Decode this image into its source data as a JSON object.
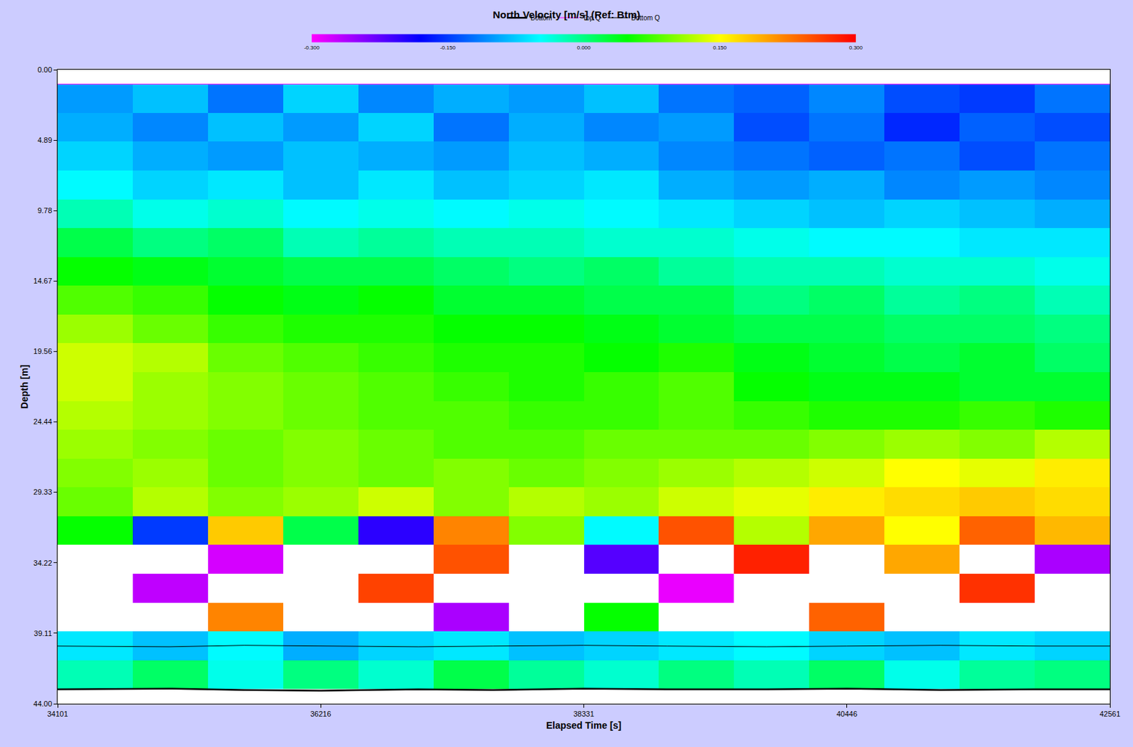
{
  "chart_data": {
    "type": "heatmap",
    "title": "North Velocity [m/s] (Ref: Btm)",
    "x_label": "Elapsed Time [s]",
    "y_label": "Depth [m]",
    "xlim": [
      34101,
      42561
    ],
    "xticks": [
      34101,
      36216,
      38331,
      40446,
      42561
    ],
    "ylim": [
      0,
      44
    ],
    "yticks": [
      {
        "value": 0,
        "label": "0.00"
      },
      4.89,
      9.78,
      14.67,
      19.56,
      24.44,
      29.33,
      34.22,
      39.11,
      {
        "value": 44,
        "label": "44.00"
      }
    ],
    "grid": false,
    "legend": "top",
    "heatmap": {
      "x": [
        34403,
        35007,
        35611,
        36215,
        36820,
        37424,
        38028,
        38632,
        39236,
        39840,
        40444,
        41049,
        41653,
        42257
      ],
      "y": [
        2,
        4,
        6,
        8,
        10,
        12,
        14,
        16,
        18,
        20,
        22,
        24,
        26,
        28,
        30,
        32,
        34,
        36,
        38,
        40,
        42
      ],
      "z": [
        [
          -0.1,
          -0.08,
          -0.12,
          -0.07,
          -0.11,
          -0.09,
          -0.1,
          -0.08,
          -0.12,
          -0.13,
          -0.11,
          -0.14,
          -0.15,
          -0.12
        ],
        [
          -0.09,
          -0.11,
          -0.08,
          -0.1,
          -0.07,
          -0.12,
          -0.09,
          -0.11,
          -0.1,
          -0.14,
          -0.12,
          -0.16,
          -0.13,
          -0.14
        ],
        [
          -0.07,
          -0.09,
          -0.1,
          -0.08,
          -0.09,
          -0.1,
          -0.08,
          -0.09,
          -0.11,
          -0.12,
          -0.13,
          -0.12,
          -0.14,
          -0.12
        ],
        [
          -0.05,
          -0.07,
          -0.06,
          -0.08,
          -0.06,
          -0.08,
          -0.07,
          -0.06,
          -0.09,
          -0.1,
          -0.09,
          -0.11,
          -0.1,
          -0.11
        ],
        [
          -0.02,
          -0.04,
          -0.03,
          -0.05,
          -0.04,
          -0.05,
          -0.04,
          -0.05,
          -0.06,
          -0.07,
          -0.08,
          -0.07,
          -0.08,
          -0.09
        ],
        [
          0.02,
          0.0,
          0.01,
          -0.02,
          -0.01,
          -0.02,
          -0.02,
          -0.03,
          -0.03,
          -0.04,
          -0.05,
          -0.05,
          -0.06,
          -0.06
        ],
        [
          0.05,
          0.04,
          0.03,
          0.02,
          0.02,
          0.01,
          0.0,
          0.01,
          -0.01,
          -0.02,
          -0.02,
          -0.03,
          -0.03,
          -0.04
        ],
        [
          0.08,
          0.07,
          0.05,
          0.04,
          0.05,
          0.03,
          0.03,
          0.02,
          0.02,
          0.0,
          0.01,
          -0.01,
          0.0,
          -0.02
        ],
        [
          0.11,
          0.09,
          0.07,
          0.06,
          0.06,
          0.05,
          0.05,
          0.04,
          0.03,
          0.02,
          0.02,
          0.01,
          0.01,
          0.0
        ],
        [
          0.13,
          0.12,
          0.09,
          0.08,
          0.07,
          0.06,
          0.06,
          0.05,
          0.06,
          0.04,
          0.03,
          0.02,
          0.03,
          0.01
        ],
        [
          0.13,
          0.11,
          0.1,
          0.09,
          0.08,
          0.07,
          0.06,
          0.07,
          0.08,
          0.05,
          0.04,
          0.04,
          0.03,
          0.03
        ],
        [
          0.12,
          0.11,
          0.1,
          0.09,
          0.08,
          0.08,
          0.07,
          0.07,
          0.08,
          0.07,
          0.06,
          0.06,
          0.07,
          0.06
        ],
        [
          0.11,
          0.1,
          0.09,
          0.1,
          0.09,
          0.08,
          0.08,
          0.09,
          0.09,
          0.09,
          0.1,
          0.11,
          0.1,
          0.12
        ],
        [
          0.1,
          0.11,
          0.09,
          0.1,
          0.09,
          0.1,
          0.09,
          0.1,
          0.11,
          0.12,
          0.13,
          0.15,
          0.14,
          0.16
        ],
        [
          0.09,
          0.12,
          0.1,
          0.11,
          0.13,
          0.1,
          0.12,
          0.11,
          0.13,
          0.14,
          0.16,
          0.17,
          0.18,
          0.17
        ],
        [
          0.05,
          -0.15,
          0.18,
          0.02,
          -0.2,
          0.22,
          0.1,
          -0.05,
          0.25,
          0.12,
          0.2,
          0.15,
          0.24,
          0.19
        ],
        [
          null,
          null,
          -0.28,
          null,
          null,
          0.25,
          null,
          -0.22,
          null,
          0.28,
          null,
          0.2,
          null,
          -0.26
        ],
        [
          null,
          -0.27,
          null,
          null,
          0.26,
          null,
          null,
          null,
          -0.29,
          null,
          null,
          null,
          0.27,
          null
        ],
        [
          null,
          null,
          0.22,
          null,
          null,
          -0.26,
          null,
          0.05,
          null,
          null,
          0.24,
          null,
          null,
          null
        ],
        [
          -0.06,
          -0.08,
          -0.05,
          -0.09,
          -0.07,
          -0.06,
          -0.08,
          -0.07,
          -0.06,
          -0.05,
          -0.07,
          -0.08,
          -0.06,
          -0.07
        ],
        [
          -0.02,
          0.01,
          -0.04,
          0.0,
          -0.03,
          0.02,
          -0.01,
          -0.03,
          0.0,
          -0.02,
          0.01,
          -0.04,
          -0.01,
          0.0
        ]
      ]
    },
    "colorbar": {
      "range": [
        -0.3,
        0.3
      ],
      "ticks": [
        {
          "value": -0.3,
          "label": "-0.300"
        },
        {
          "value": -0.15,
          "label": "-0.150"
        },
        {
          "value": 0,
          "label": "0.000"
        },
        {
          "value": 0.15,
          "label": "0.150"
        },
        {
          "value": 0.3,
          "label": "0.300"
        }
      ]
    },
    "series": [
      {
        "name": "Bottom",
        "color": "#000000",
        "line_style": "solid",
        "x": [
          34101,
          35000,
          35600,
          36216,
          37000,
          37600,
          38331,
          39000,
          39800,
          40446,
          41200,
          42000,
          42561
        ],
        "values": [
          43.0,
          42.95,
          43.05,
          43.1,
          43.0,
          43.05,
          42.95,
          43.0,
          43.0,
          42.95,
          43.05,
          43.0,
          43.0
        ]
      },
      {
        "name": "Top Q",
        "color": "#ff00ff",
        "line_style": "solid",
        "x": [
          34101,
          42561
        ],
        "values": [
          1.0,
          1.0
        ]
      },
      {
        "name": "Bottom Q",
        "color": "#000000",
        "line_style": "solid",
        "x": [
          34101,
          35000,
          35600,
          36216,
          37000,
          37600,
          38331,
          39000,
          39800,
          40446,
          41200,
          42000,
          42561
        ],
        "values": [
          40.0,
          40.05,
          39.95,
          40.0,
          40.05,
          40.0,
          39.95,
          40.0,
          40.05,
          40.0,
          39.95,
          40.0,
          40.0
        ]
      }
    ]
  }
}
